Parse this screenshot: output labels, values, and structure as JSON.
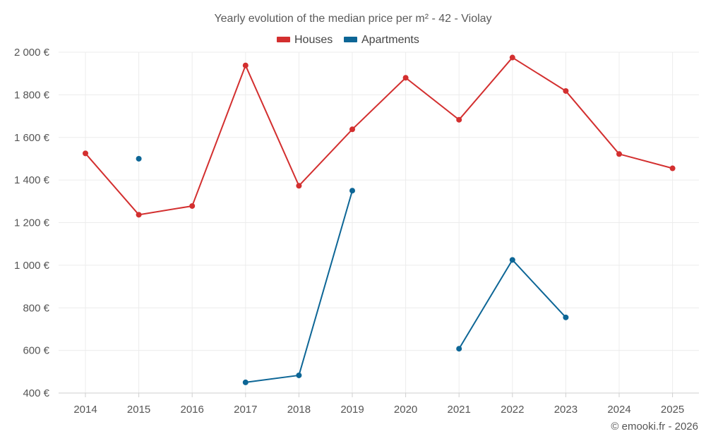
{
  "chart_data": {
    "type": "line",
    "title": "Yearly evolution of the median price per m² - 42 - Violay",
    "categories": [
      "2014",
      "2015",
      "2016",
      "2017",
      "2018",
      "2019",
      "2020",
      "2021",
      "2022",
      "2023",
      "2024",
      "2025"
    ],
    "series": [
      {
        "name": "Houses",
        "color": "#d32f2f",
        "values": [
          1525,
          1237,
          1278,
          1938,
          1373,
          1638,
          1880,
          1683,
          1975,
          1818,
          1522,
          1455
        ]
      },
      {
        "name": "Apartments",
        "color": "#0d6696",
        "values": [
          null,
          1500,
          null,
          450,
          483,
          1350,
          null,
          608,
          1025,
          755,
          null,
          null
        ]
      }
    ],
    "ylim": [
      400,
      2000
    ],
    "yticks": [
      400,
      600,
      800,
      1000,
      1200,
      1400,
      1600,
      1800,
      2000
    ],
    "ytick_labels": [
      "400 €",
      "600 €",
      "800 €",
      "1 000 €",
      "1 200 €",
      "1 400 €",
      "1 600 €",
      "1 800 €",
      "2 000 €"
    ],
    "xlabel": "",
    "ylabel": "",
    "legend_position": "top-center",
    "grid": true
  },
  "credit": "© emooki.fr - 2026"
}
